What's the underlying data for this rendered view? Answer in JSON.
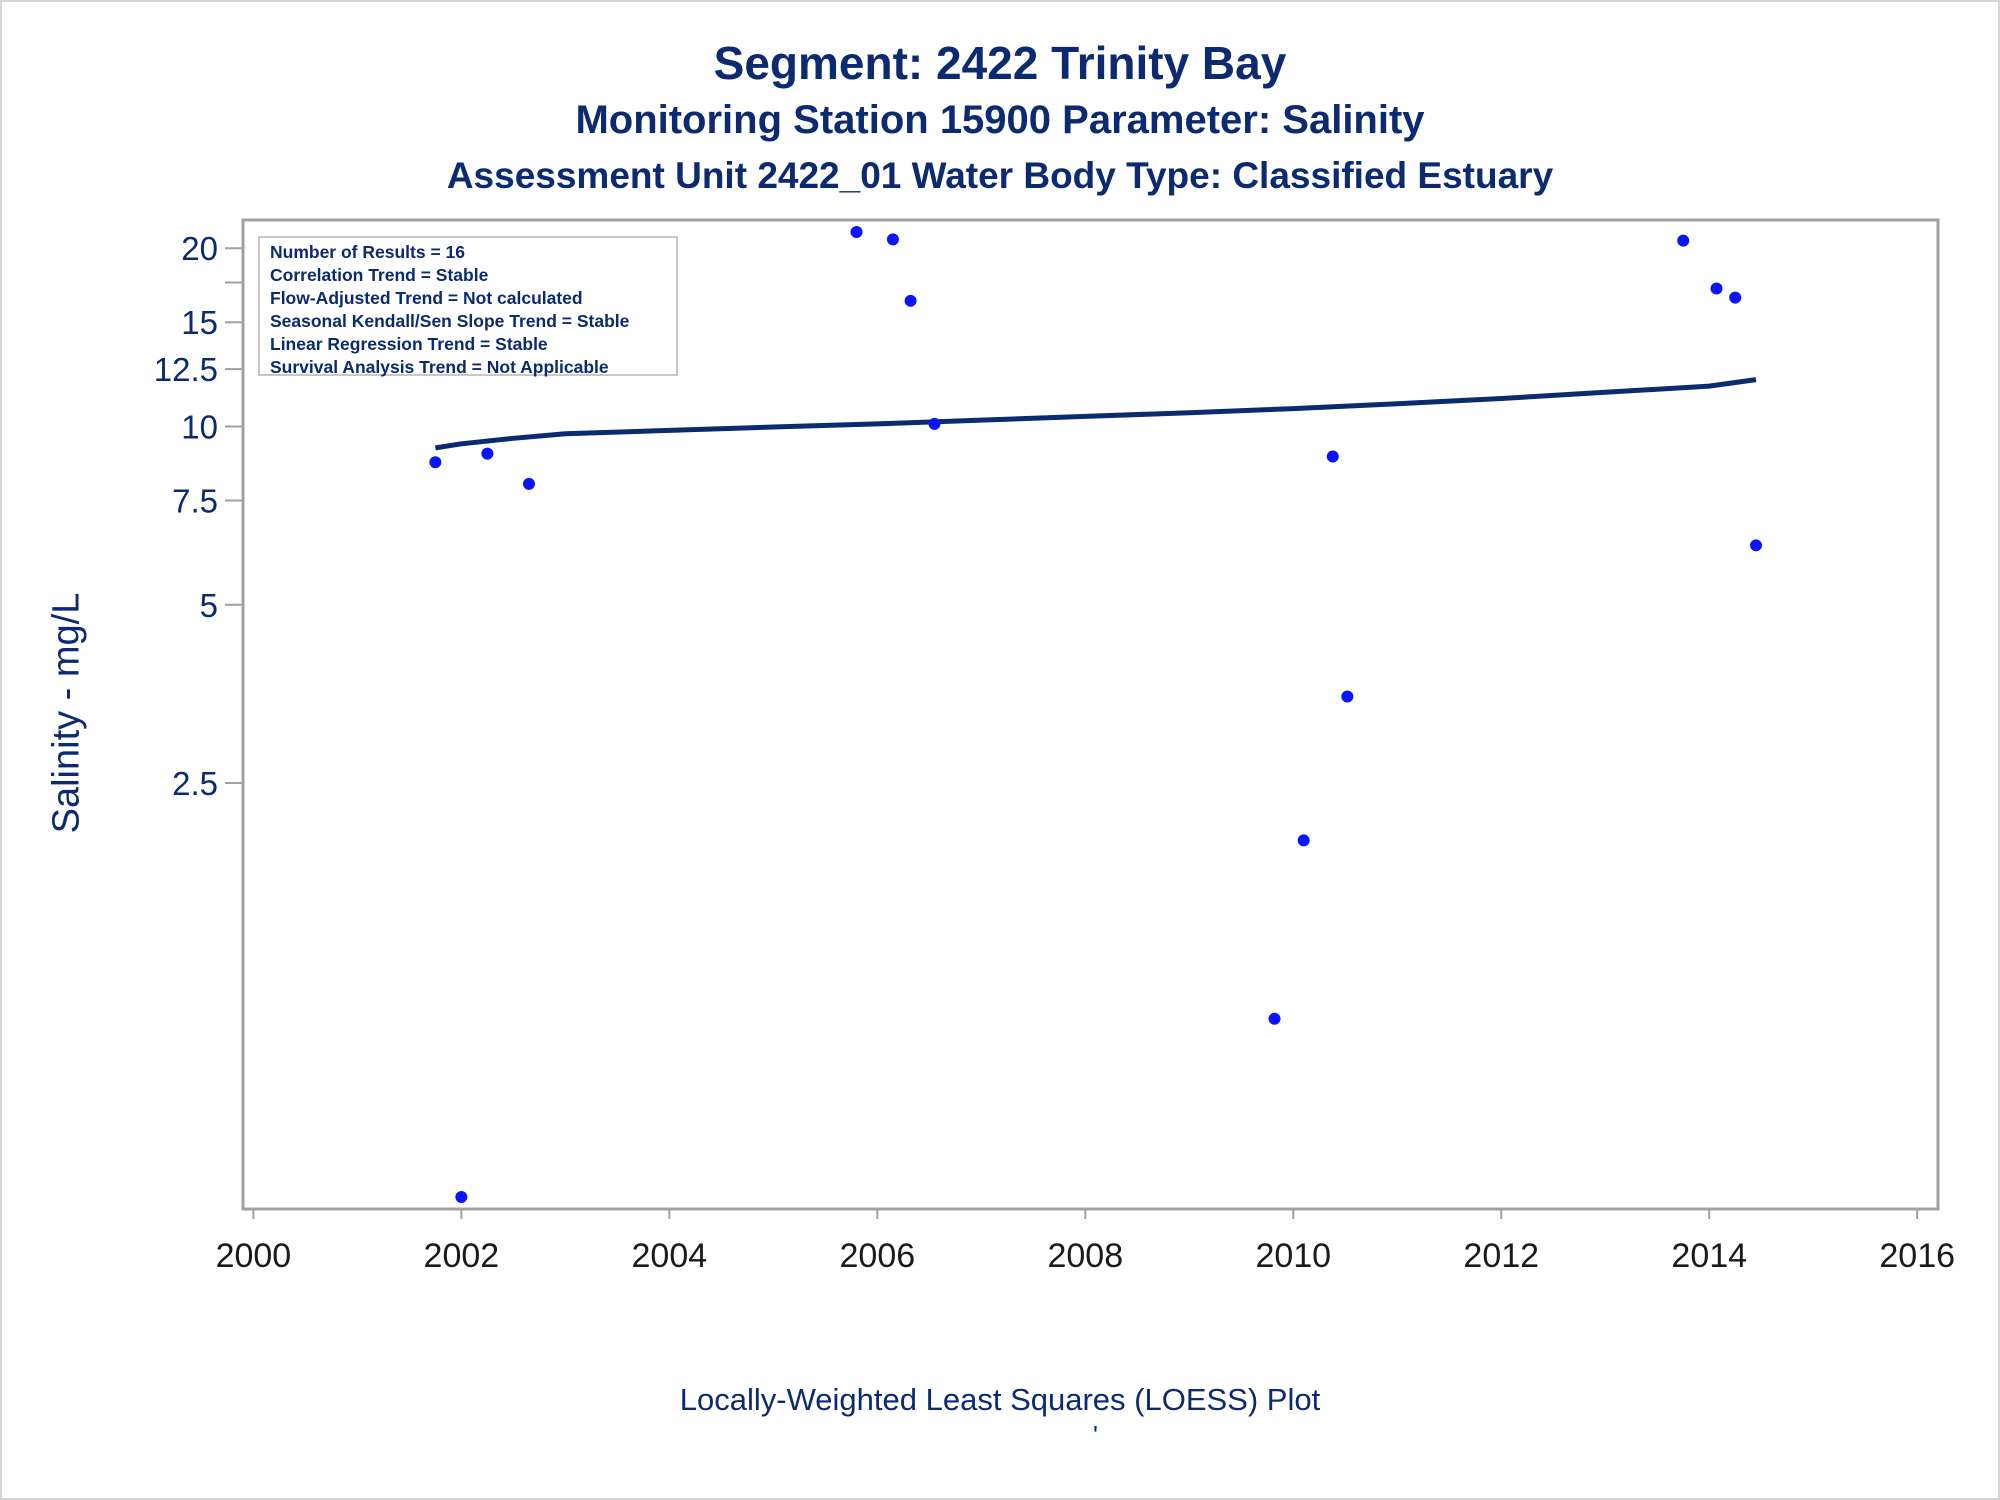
{
  "title": "Segment: 2422  Trinity Bay",
  "subtitle": "Monitoring Station 15900 Parameter: Salinity",
  "subtitle2": "Assessment Unit 2422_01   Water Body Type: Classified Estuary",
  "footnote": "Locally-Weighted Least Squares (LOESS) Plot",
  "footmark": "'",
  "colors": {
    "text": "#0b2a6f",
    "points": "#0a14ff",
    "line": "#0b2a6f",
    "frame": "#a0a0a0"
  },
  "legend": {
    "lines": [
      "Number of Results = 16",
      "Correlation Trend = Stable",
      "Flow-Adjusted Trend = Not calculated",
      "Seasonal Kendall/Sen Slope Trend = Stable",
      "Linear Regression Trend = Stable",
      "Survival Analysis Trend = Not Applicable"
    ]
  },
  "chart_data": {
    "type": "scatter",
    "ylabel": "Salinity - mg/L",
    "xlabel": "",
    "y_scale": "log",
    "x_ticks": [
      2000,
      2002,
      2004,
      2006,
      2008,
      2010,
      2012,
      2014,
      2016
    ],
    "y_ticks": [
      2.5,
      5,
      7.5,
      10,
      12.5,
      15,
      20
    ],
    "y_minor_ticks": [
      17.5
    ],
    "xlim": [
      1999.9,
      2016.2
    ],
    "ylim": [
      0.5,
      21.3
    ],
    "series": [
      {
        "type": "scatter",
        "points": [
          {
            "x": 2001.75,
            "y": 8.7
          },
          {
            "x": 2002.0,
            "y": 0.5
          },
          {
            "x": 2002.25,
            "y": 9.0
          },
          {
            "x": 2002.65,
            "y": 8.0
          },
          {
            "x": 2005.8,
            "y": 21.3
          },
          {
            "x": 2006.15,
            "y": 20.7
          },
          {
            "x": 2006.32,
            "y": 16.3
          },
          {
            "x": 2006.55,
            "y": 10.1
          },
          {
            "x": 2009.82,
            "y": 1.0
          },
          {
            "x": 2010.1,
            "y": 2.0
          },
          {
            "x": 2010.38,
            "y": 8.9
          },
          {
            "x": 2010.52,
            "y": 3.5
          },
          {
            "x": 2013.75,
            "y": 20.6
          },
          {
            "x": 2014.07,
            "y": 17.1
          },
          {
            "x": 2014.25,
            "y": 16.5
          },
          {
            "x": 2014.45,
            "y": 6.3
          }
        ]
      },
      {
        "type": "line",
        "points": [
          {
            "x": 2001.75,
            "y": 9.2
          },
          {
            "x": 2002.0,
            "y": 9.35
          },
          {
            "x": 2002.5,
            "y": 9.55
          },
          {
            "x": 2003.0,
            "y": 9.72
          },
          {
            "x": 2004.0,
            "y": 9.85
          },
          {
            "x": 2005.0,
            "y": 9.98
          },
          {
            "x": 2006.0,
            "y": 10.1
          },
          {
            "x": 2007.0,
            "y": 10.25
          },
          {
            "x": 2008.0,
            "y": 10.4
          },
          {
            "x": 2009.0,
            "y": 10.55
          },
          {
            "x": 2010.0,
            "y": 10.72
          },
          {
            "x": 2011.0,
            "y": 10.92
          },
          {
            "x": 2012.0,
            "y": 11.15
          },
          {
            "x": 2013.0,
            "y": 11.42
          },
          {
            "x": 2014.0,
            "y": 11.7
          },
          {
            "x": 2014.45,
            "y": 12.0
          }
        ]
      }
    ]
  }
}
